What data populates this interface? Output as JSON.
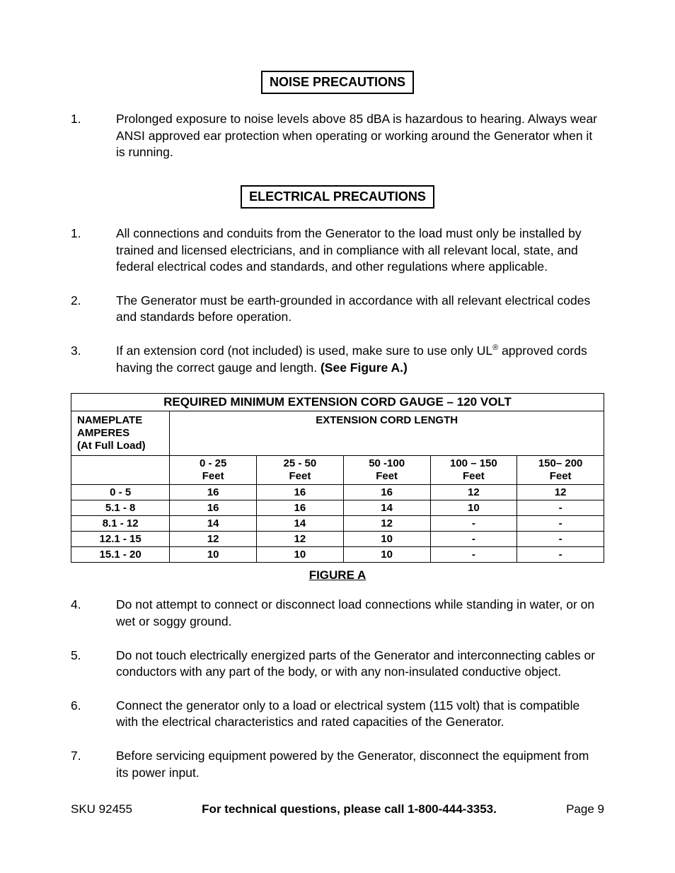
{
  "section1": {
    "title": "NOISE PRECAUTIONS",
    "items": [
      {
        "num": "1.",
        "text": "Prolonged exposure to noise levels above 85 dBA is hazardous to hearing. Always wear ANSI approved ear protection when operating or working around the Generator when it is running."
      }
    ]
  },
  "section2": {
    "title": "ELECTRICAL PRECAUTIONS",
    "items_a": [
      {
        "num": "1.",
        "text": "All connections and conduits from the Generator to the load must only be installed by trained and licensed electricians, and in compliance with all relevant local, state, and federal electrical codes and standards, and other regulations where applicable."
      },
      {
        "num": "2.",
        "text": "The Generator must be earth-grounded in accordance with all relevant electrical codes and standards before operation."
      },
      {
        "num": "3.",
        "text_pre": "If an extension cord (not included) is used, make sure to use only UL",
        "text_sup": "®",
        "text_mid": " approved cords having the correct gauge and length.  ",
        "text_bold": "(See Figure A.)"
      }
    ],
    "items_b": [
      {
        "num": "4.",
        "text": "Do not attempt to connect or disconnect load connections while standing in water, or on wet or soggy ground."
      },
      {
        "num": "5.",
        "text": "Do not touch electrically energized parts of the Generator and interconnecting cables or conductors with any part of the body, or with any non-insulated conductive object."
      },
      {
        "num": "6.",
        "text": "Connect the generator only to a load or electrical system (115 volt) that is compatible with the electrical characteristics and rated capacities of the Generator."
      },
      {
        "num": "7.",
        "text": "Before servicing equipment powered by the Generator, disconnect the equipment from its power input."
      }
    ]
  },
  "table": {
    "title": "REQUIRED MINIMUM EXTENSION CORD GAUGE – 120 VOLT",
    "row_header_line1": "NAMEPLATE",
    "row_header_line2": "AMPERES",
    "row_header_line3": "(At Full Load)",
    "col_group_header": "EXTENSION CORD LENGTH",
    "columns": [
      {
        "range": "0 - 25",
        "unit": "Feet"
      },
      {
        "range": "25 - 50",
        "unit": "Feet"
      },
      {
        "range": "50 -100",
        "unit": "Feet"
      },
      {
        "range": "100 – 150",
        "unit": "Feet"
      },
      {
        "range": "150– 200",
        "unit": "Feet"
      }
    ],
    "rows": [
      {
        "label": "0 - 5",
        "cells": [
          "16",
          "16",
          "16",
          "12",
          "12"
        ]
      },
      {
        "label": "5.1 - 8",
        "cells": [
          "16",
          "16",
          "14",
          "10",
          "-"
        ]
      },
      {
        "label": "8.1 - 12",
        "cells": [
          "14",
          "14",
          "12",
          "-",
          "-"
        ]
      },
      {
        "label": "12.1 - 15",
        "cells": [
          "12",
          "12",
          "10",
          "-",
          "-"
        ]
      },
      {
        "label": "15.1 - 20",
        "cells": [
          "10",
          "10",
          "10",
          "-",
          "-"
        ]
      }
    ],
    "figure_label": "FIGURE A"
  },
  "footer": {
    "sku": "SKU 92455",
    "center": "For technical questions, please call 1-800-444-3353.",
    "page": "Page 9"
  }
}
